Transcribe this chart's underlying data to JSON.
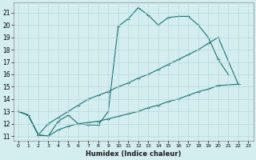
{
  "xlabel": "Humidex (Indice chaleur)",
  "bg_color": "#d4eef0",
  "grid_color": "#b8d8dc",
  "line_color": "#1a7070",
  "xlim": [
    -0.5,
    23.5
  ],
  "ylim": [
    10.6,
    21.8
  ],
  "yticks": [
    11,
    12,
    13,
    14,
    15,
    16,
    17,
    18,
    19,
    20,
    21
  ],
  "xticks": [
    0,
    1,
    2,
    3,
    4,
    5,
    6,
    7,
    8,
    9,
    10,
    11,
    12,
    13,
    14,
    15,
    16,
    17,
    18,
    19,
    20,
    21,
    22,
    23
  ],
  "line1_x": [
    0,
    1,
    2,
    3,
    4,
    5,
    6,
    7,
    8,
    9,
    10,
    11,
    12,
    13,
    14,
    15,
    16,
    17,
    18,
    19,
    20,
    21
  ],
  "line1_y": [
    13.0,
    12.7,
    11.1,
    11.0,
    12.2,
    12.7,
    12.0,
    11.9,
    11.9,
    13.0,
    19.9,
    20.5,
    21.4,
    20.8,
    20.0,
    20.6,
    20.7,
    20.7,
    20.0,
    19.0,
    17.2,
    16.0
  ],
  "line2_x": [
    0,
    1,
    2,
    3,
    4,
    5,
    6,
    7,
    8,
    9,
    10,
    11,
    12,
    13,
    14,
    15,
    16,
    17,
    18,
    19,
    20,
    22
  ],
  "line2_y": [
    13.0,
    12.7,
    11.1,
    12.0,
    12.5,
    13.0,
    13.5,
    14.0,
    14.3,
    14.6,
    15.0,
    15.3,
    15.7,
    16.0,
    16.4,
    16.8,
    17.2,
    17.6,
    18.0,
    18.5,
    19.0,
    15.2
  ],
  "line3_x": [
    0,
    1,
    2,
    3,
    4,
    5,
    6,
    7,
    8,
    9,
    10,
    11,
    12,
    13,
    14,
    15,
    16,
    17,
    18,
    19,
    20,
    22
  ],
  "line3_y": [
    13.0,
    12.7,
    11.1,
    11.0,
    11.5,
    11.8,
    12.0,
    12.1,
    12.2,
    12.4,
    12.6,
    12.8,
    13.0,
    13.3,
    13.5,
    13.8,
    14.0,
    14.3,
    14.6,
    14.8,
    15.1,
    15.2
  ]
}
